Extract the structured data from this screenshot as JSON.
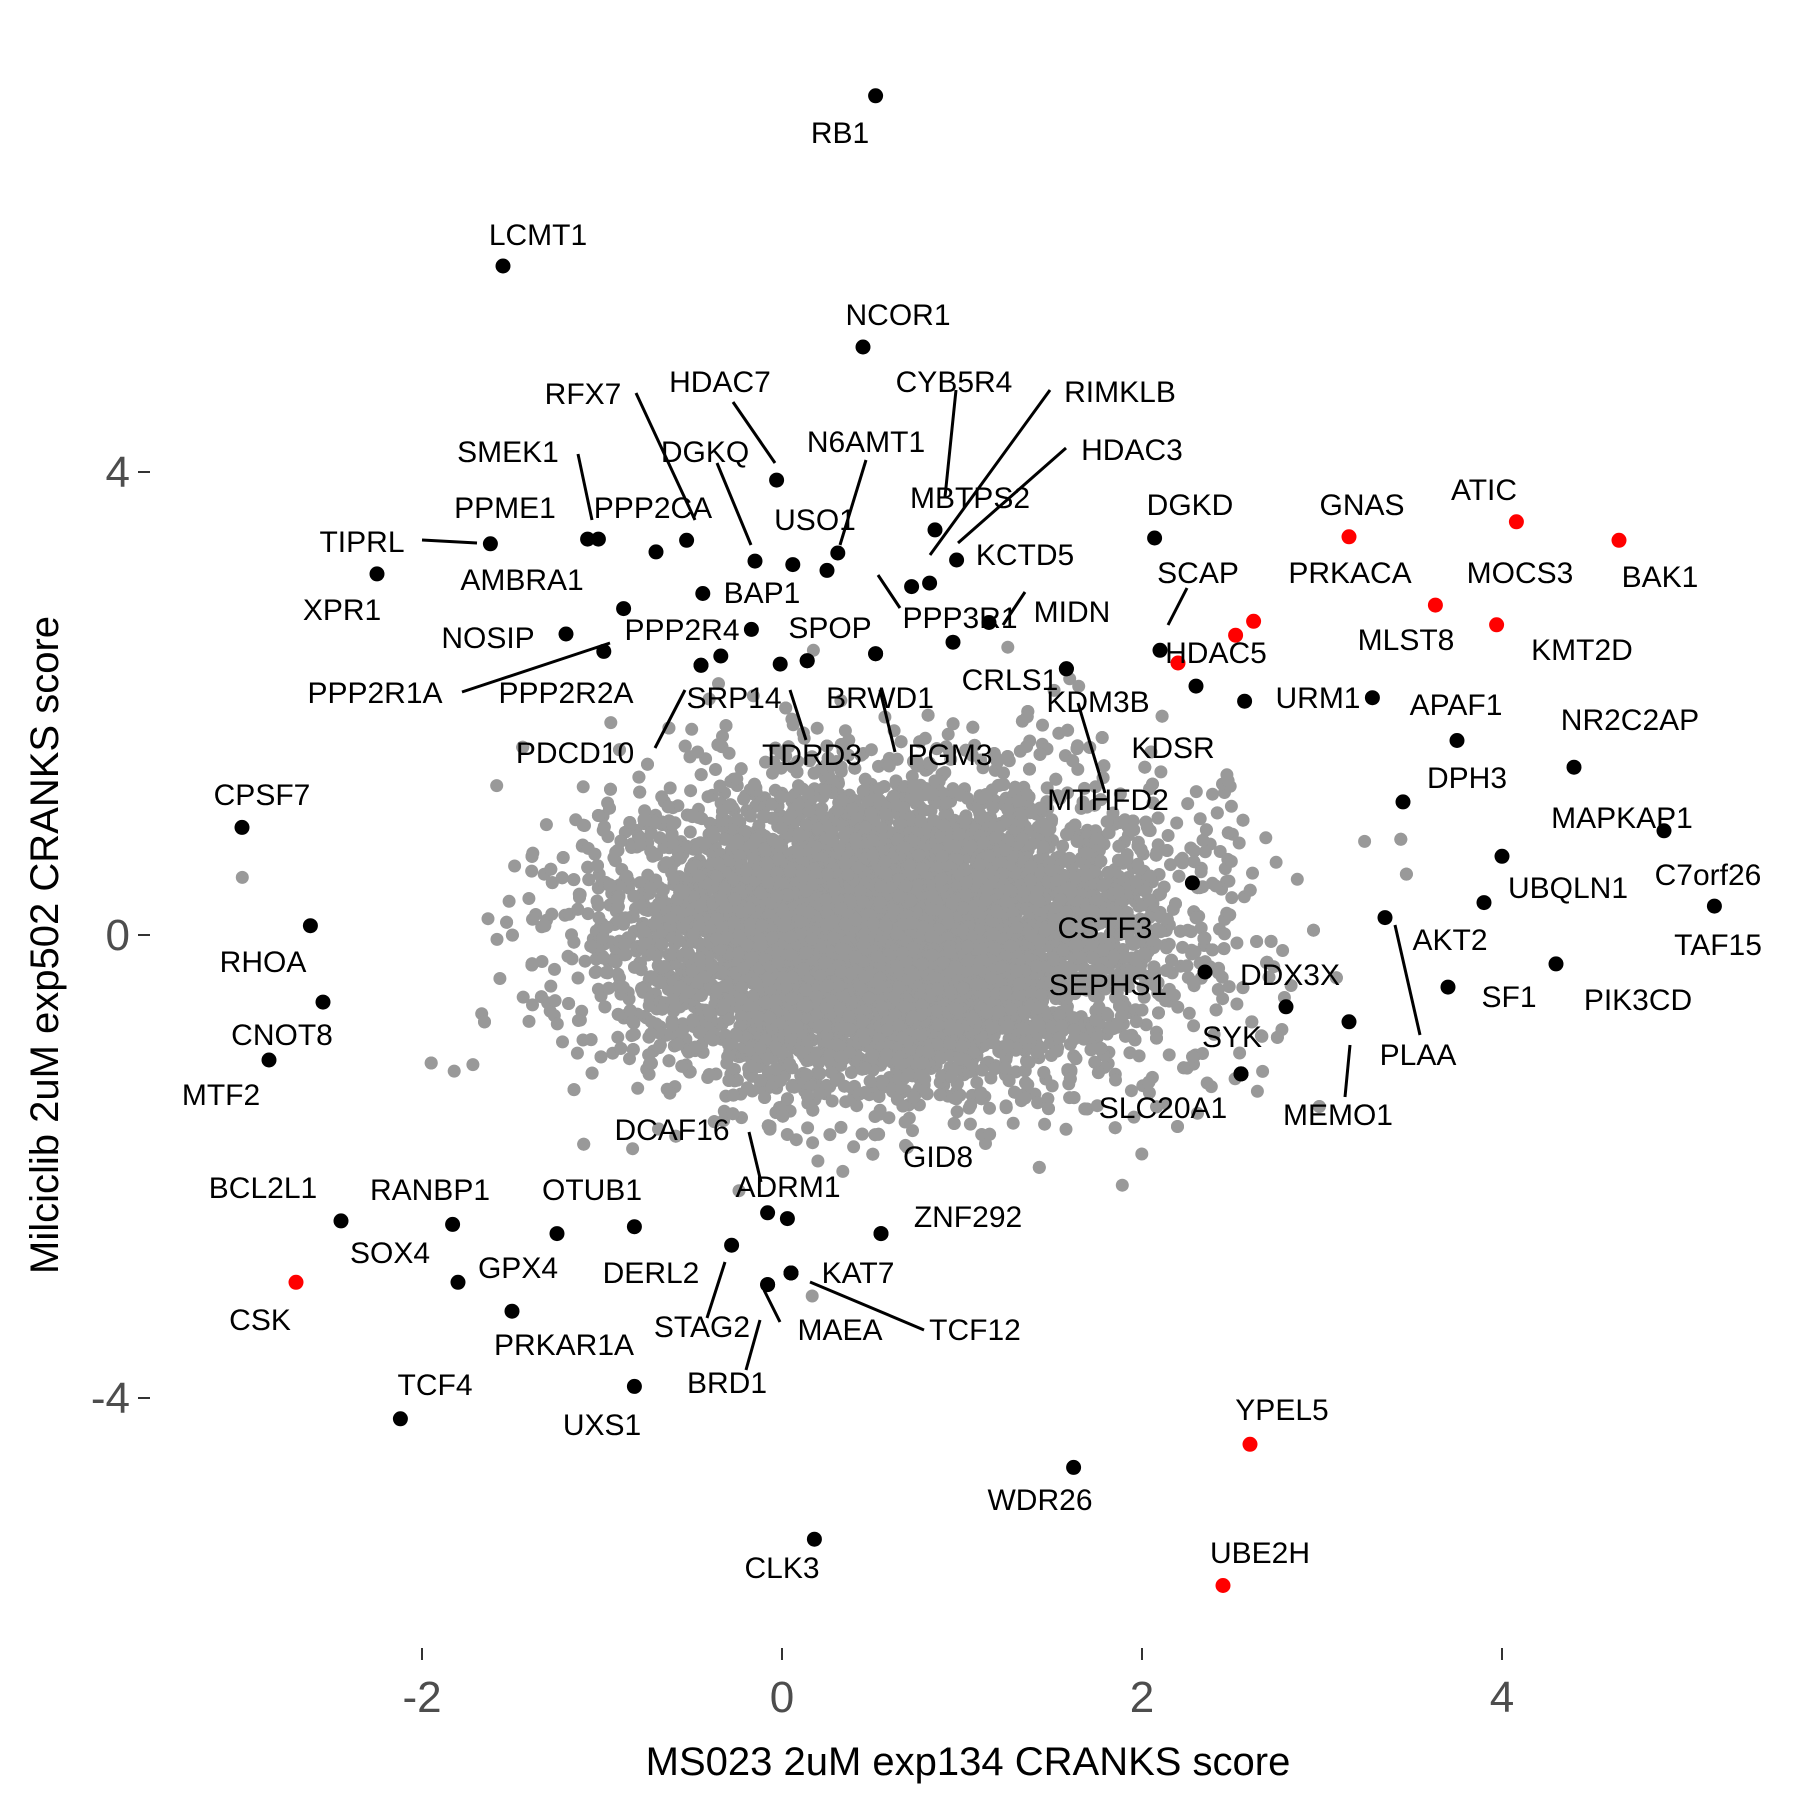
{
  "chart_data": {
    "type": "scatter",
    "xlabel": "MS023 2uM exp134 CRANKS score",
    "ylabel": "Milciclib 2uM exp502 CRANKS score",
    "xlim": [
      -3.05,
      5.35
    ],
    "ylim": [
      -5.3,
      7.3
    ],
    "x_ticks": [
      -2,
      0,
      2,
      4
    ],
    "x_tick_labels": [
      "-2",
      "0",
      "2",
      "4"
    ],
    "y_ticks": [
      -4,
      0,
      4
    ],
    "y_tick_labels": [
      "-4",
      "0",
      "4"
    ],
    "grid": false,
    "legend": "none",
    "colors": {
      "background": "#ffffff",
      "bulk": "#999999",
      "highlight_black": "#000000",
      "highlight_red": "#ff0000",
      "tick": "#4d4d4d"
    },
    "background_cloud": {
      "color": "#999999",
      "center": [
        0.6,
        0.0
      ],
      "sd": [
        0.75,
        0.65
      ],
      "approx_points": 9000
    },
    "points": [
      {
        "label": "RB1",
        "x": 0.52,
        "y": 7.25,
        "color": "#000000"
      },
      {
        "label": "LCMT1",
        "x": -1.55,
        "y": 5.78,
        "color": "#000000"
      },
      {
        "label": "NCOR1",
        "x": 0.45,
        "y": 5.08,
        "color": "#000000"
      },
      {
        "label": "RFX7",
        "x": -0.53,
        "y": 3.41,
        "color": "#000000"
      },
      {
        "label": "HDAC7",
        "x": -0.03,
        "y": 3.93,
        "color": "#000000"
      },
      {
        "label": "CYB5R4",
        "x": 0.85,
        "y": 3.5,
        "color": "#000000"
      },
      {
        "label": "RIMKLB",
        "x": 0.82,
        "y": 3.04,
        "color": "#000000"
      },
      {
        "label": "HDAC3",
        "x": 0.97,
        "y": 3.24,
        "color": "#000000"
      },
      {
        "label": "SMEK1",
        "x": -1.08,
        "y": 3.42,
        "color": "#000000"
      },
      {
        "label": "DGKQ",
        "x": -0.15,
        "y": 3.23,
        "color": "#000000"
      },
      {
        "label": "N6AMT1",
        "x": 0.31,
        "y": 3.3,
        "color": "#000000"
      },
      {
        "label": "PPME1",
        "x": -1.02,
        "y": 3.42,
        "color": "#000000"
      },
      {
        "label": "PPP2CA",
        "x": -0.7,
        "y": 3.31,
        "color": "#000000"
      },
      {
        "label": "USO1",
        "x": 0.06,
        "y": 3.2,
        "color": "#000000"
      },
      {
        "label": "MBTPS2",
        "x": 0.72,
        "y": 3.01,
        "color": "#000000"
      },
      {
        "label": "TIPRL",
        "x": -1.62,
        "y": 3.38,
        "color": "#000000"
      },
      {
        "label": "XPR1",
        "x": -2.25,
        "y": 3.12,
        "color": "#000000"
      },
      {
        "label": "AMBRA1",
        "x": -0.88,
        "y": 2.82,
        "color": "#000000"
      },
      {
        "label": "BAP1",
        "x": -0.44,
        "y": 2.95,
        "color": "#000000"
      },
      {
        "label": "KCTD5",
        "x": 0.25,
        "y": 3.15,
        "color": "#000000"
      },
      {
        "label": "NOSIP",
        "x": -1.2,
        "y": 2.6,
        "color": "#000000"
      },
      {
        "label": "PPP2R4",
        "x": -0.99,
        "y": 2.45,
        "color": "#000000"
      },
      {
        "label": "SPOP",
        "x": -0.17,
        "y": 2.64,
        "color": "#000000"
      },
      {
        "label": "PPP3R1",
        "x": 1.15,
        "y": 2.7,
        "color": "#000000"
      },
      {
        "label": "MIDN",
        "x": 0.95,
        "y": 2.53,
        "color": "#000000"
      },
      {
        "label": "PPP2R1A",
        "x": -0.45,
        "y": 2.33,
        "color": "#000000"
      },
      {
        "label": "PPP2R2A",
        "x": -0.34,
        "y": 2.41,
        "color": "#000000"
      },
      {
        "label": "SRP14",
        "x": -0.01,
        "y": 2.34,
        "color": "#000000"
      },
      {
        "label": "BRWD1",
        "x": 0.14,
        "y": 2.37,
        "color": "#000000"
      },
      {
        "label": "CRLS1",
        "x": 0.52,
        "y": 2.43,
        "color": "#000000"
      },
      {
        "label": "PDCD10",
        "x": -0.45,
        "y": 2.33,
        "color": "#000000"
      },
      {
        "label": "TDRD3",
        "x": 0.14,
        "y": 2.37,
        "color": "#000000"
      },
      {
        "label": "PGM3",
        "x": 0.52,
        "y": 2.43,
        "color": "#000000"
      },
      {
        "label": "KDM3B",
        "x": 1.58,
        "y": 2.3,
        "color": "#000000"
      },
      {
        "label": "MTHFD2",
        "x": 1.58,
        "y": 2.3,
        "color": "#000000"
      },
      {
        "label": "DGKD",
        "x": 2.07,
        "y": 3.43,
        "color": "#000000"
      },
      {
        "label": "SCAP",
        "x": 2.1,
        "y": 2.46,
        "color": "#000000"
      },
      {
        "label": "HDAC5",
        "x": 2.2,
        "y": 2.35,
        "color": "#ff0000"
      },
      {
        "label": "GNAS",
        "x": 3.15,
        "y": 3.44,
        "color": "#ff0000"
      },
      {
        "label": "PRKACA",
        "x": 2.62,
        "y": 2.71,
        "color": "#ff0000"
      },
      {
        "label": "ATIC",
        "x": 4.08,
        "y": 3.57,
        "color": "#ff0000"
      },
      {
        "label": "MOCS3",
        "x": 3.63,
        "y": 2.85,
        "color": "#ff0000"
      },
      {
        "label": "MLST8",
        "x": 2.52,
        "y": 2.59,
        "color": "#ff0000"
      },
      {
        "label": "BAK1",
        "x": 4.65,
        "y": 3.41,
        "color": "#ff0000"
      },
      {
        "label": "KMT2D",
        "x": 3.97,
        "y": 2.68,
        "color": "#ff0000"
      },
      {
        "label": "URM1",
        "x": 2.57,
        "y": 2.02,
        "color": "#000000"
      },
      {
        "label": "APAF1",
        "x": 3.28,
        "y": 2.05,
        "color": "#000000"
      },
      {
        "label": "NR2C2AP",
        "x": 3.75,
        "y": 1.68,
        "color": "#000000"
      },
      {
        "label": "KDSR",
        "x": 2.3,
        "y": 2.15,
        "color": "#000000"
      },
      {
        "label": "DPH3",
        "x": 3.45,
        "y": 1.15,
        "color": "#000000"
      },
      {
        "label": "MAPKAP1",
        "x": 4.4,
        "y": 1.45,
        "color": "#000000"
      },
      {
        "label": "UBQLN1",
        "x": 4.0,
        "y": 0.68,
        "color": "#000000"
      },
      {
        "label": "C7orf26",
        "x": 4.9,
        "y": 0.9,
        "color": "#000000"
      },
      {
        "label": "TAF15",
        "x": 5.18,
        "y": 0.25,
        "color": "#000000"
      },
      {
        "label": "AKT2",
        "x": 3.9,
        "y": 0.28,
        "color": "#000000"
      },
      {
        "label": "SF1",
        "x": 3.7,
        "y": -0.45,
        "color": "#000000"
      },
      {
        "label": "PIK3CD",
        "x": 4.3,
        "y": -0.25,
        "color": "#000000"
      },
      {
        "label": "CSTF3",
        "x": 2.28,
        "y": 0.45,
        "color": "#000000"
      },
      {
        "label": "SEPHS1",
        "x": 2.35,
        "y": -0.32,
        "color": "#000000"
      },
      {
        "label": "DDX3X",
        "x": 2.8,
        "y": -0.62,
        "color": "#000000"
      },
      {
        "label": "PLAA",
        "x": 3.35,
        "y": 0.15,
        "color": "#000000"
      },
      {
        "label": "SYK",
        "x": 2.55,
        "y": -1.2,
        "color": "#000000"
      },
      {
        "label": "MEMO1",
        "x": 3.15,
        "y": -0.75,
        "color": "#000000"
      },
      {
        "label": "SLC20A1",
        "x": 2.55,
        "y": -1.2,
        "color": "#000000"
      },
      {
        "label": "CPSF7",
        "x": -3.0,
        "y": 0.93,
        "color": "#000000"
      },
      {
        "label": "RHOA",
        "x": -2.62,
        "y": 0.08,
        "color": "#000000"
      },
      {
        "label": "CNOT8",
        "x": -2.55,
        "y": -0.58,
        "color": "#000000"
      },
      {
        "label": "MTF2",
        "x": -2.85,
        "y": -1.08,
        "color": "#000000"
      },
      {
        "label": "BCL2L1",
        "x": -2.45,
        "y": -2.47,
        "color": "#000000"
      },
      {
        "label": "RANBP1",
        "x": -1.83,
        "y": -2.5,
        "color": "#000000"
      },
      {
        "label": "SOX4",
        "x": -1.8,
        "y": -3.0,
        "color": "#000000"
      },
      {
        "label": "GPX4",
        "x": -1.5,
        "y": -3.25,
        "color": "#000000"
      },
      {
        "label": "PRKAR1A",
        "x": -1.25,
        "y": -2.58,
        "color": "#000000"
      },
      {
        "label": "OTUB1",
        "x": -0.82,
        "y": -2.52,
        "color": "#000000"
      },
      {
        "label": "CSK",
        "x": -2.7,
        "y": -3.0,
        "color": "#ff0000"
      },
      {
        "label": "TCF4",
        "x": -2.12,
        "y": -4.18,
        "color": "#000000"
      },
      {
        "label": "UXS1",
        "x": -0.82,
        "y": -3.9,
        "color": "#000000"
      },
      {
        "label": "DCAF16",
        "x": -0.08,
        "y": -2.4,
        "color": "#000000"
      },
      {
        "label": "ADRM1",
        "x": 0.03,
        "y": -2.45,
        "color": "#000000"
      },
      {
        "label": "GID8",
        "x": 0.55,
        "y": -2.58,
        "color": "#000000"
      },
      {
        "label": "ZNF292",
        "x": 0.55,
        "y": -2.58,
        "color": "#000000"
      },
      {
        "label": "DERL2",
        "x": -0.28,
        "y": -2.68,
        "color": "#000000"
      },
      {
        "label": "STAG2",
        "x": -0.08,
        "y": -3.02,
        "color": "#000000"
      },
      {
        "label": "KAT7",
        "x": 0.05,
        "y": -2.92,
        "color": "#000000"
      },
      {
        "label": "MAEA",
        "x": 0.05,
        "y": -2.92,
        "color": "#000000"
      },
      {
        "label": "TCF12",
        "x": 0.05,
        "y": -2.92,
        "color": "#000000"
      },
      {
        "label": "BRD1",
        "x": -0.08,
        "y": -3.02,
        "color": "#000000"
      },
      {
        "label": "YPEL5",
        "x": 2.6,
        "y": -4.4,
        "color": "#ff0000"
      },
      {
        "label": "WDR26",
        "x": 1.62,
        "y": -4.6,
        "color": "#000000"
      },
      {
        "label": "CLK3",
        "x": 0.18,
        "y": -5.22,
        "color": "#000000"
      },
      {
        "label": "UBE2H",
        "x": 2.45,
        "y": -5.62,
        "color": "#ff0000"
      }
    ]
  }
}
